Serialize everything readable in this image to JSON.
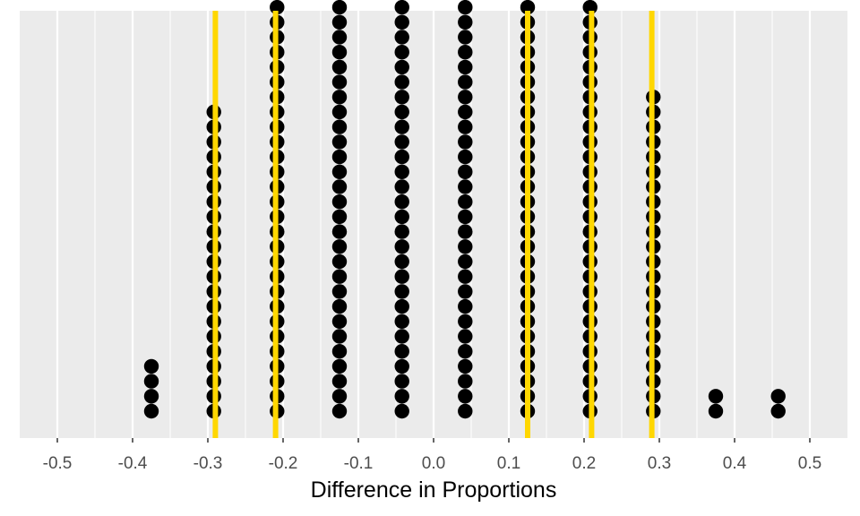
{
  "chart_data": {
    "type": "scatter",
    "subtype": "dotplot",
    "title": "",
    "xlabel": "Difference in Proportions",
    "ylabel": "",
    "xlim": [
      -0.55,
      0.55
    ],
    "x_ticks": [
      -0.5,
      -0.4,
      -0.3,
      -0.2,
      -0.1,
      0.0,
      0.1,
      0.2,
      0.3,
      0.4,
      0.5
    ],
    "x_tick_labels": [
      "-0.5",
      "-0.4",
      "-0.3",
      "-0.2",
      "-0.1",
      "0.0",
      "0.1",
      "0.2",
      "0.3",
      "0.4",
      "0.5"
    ],
    "grid": true,
    "y_axis_visible": false,
    "dot_stacks": [
      {
        "x": -0.375,
        "count": 4
      },
      {
        "x": -0.292,
        "count": 21
      },
      {
        "x": -0.208,
        "count": 28
      },
      {
        "x": -0.125,
        "count": 28
      },
      {
        "x": -0.042,
        "count": 28
      },
      {
        "x": 0.042,
        "count": 28
      },
      {
        "x": 0.125,
        "count": 28
      },
      {
        "x": 0.208,
        "count": 28
      },
      {
        "x": 0.292,
        "count": 22
      },
      {
        "x": 0.375,
        "count": 2
      },
      {
        "x": 0.458,
        "count": 2
      }
    ],
    "reference_lines": [
      -0.29,
      -0.21,
      0.125,
      0.21,
      0.29
    ],
    "colors": {
      "panel": "#ebebeb",
      "grid": "#ffffff",
      "dots": "#000000",
      "reference_line": "#ffd700"
    }
  }
}
